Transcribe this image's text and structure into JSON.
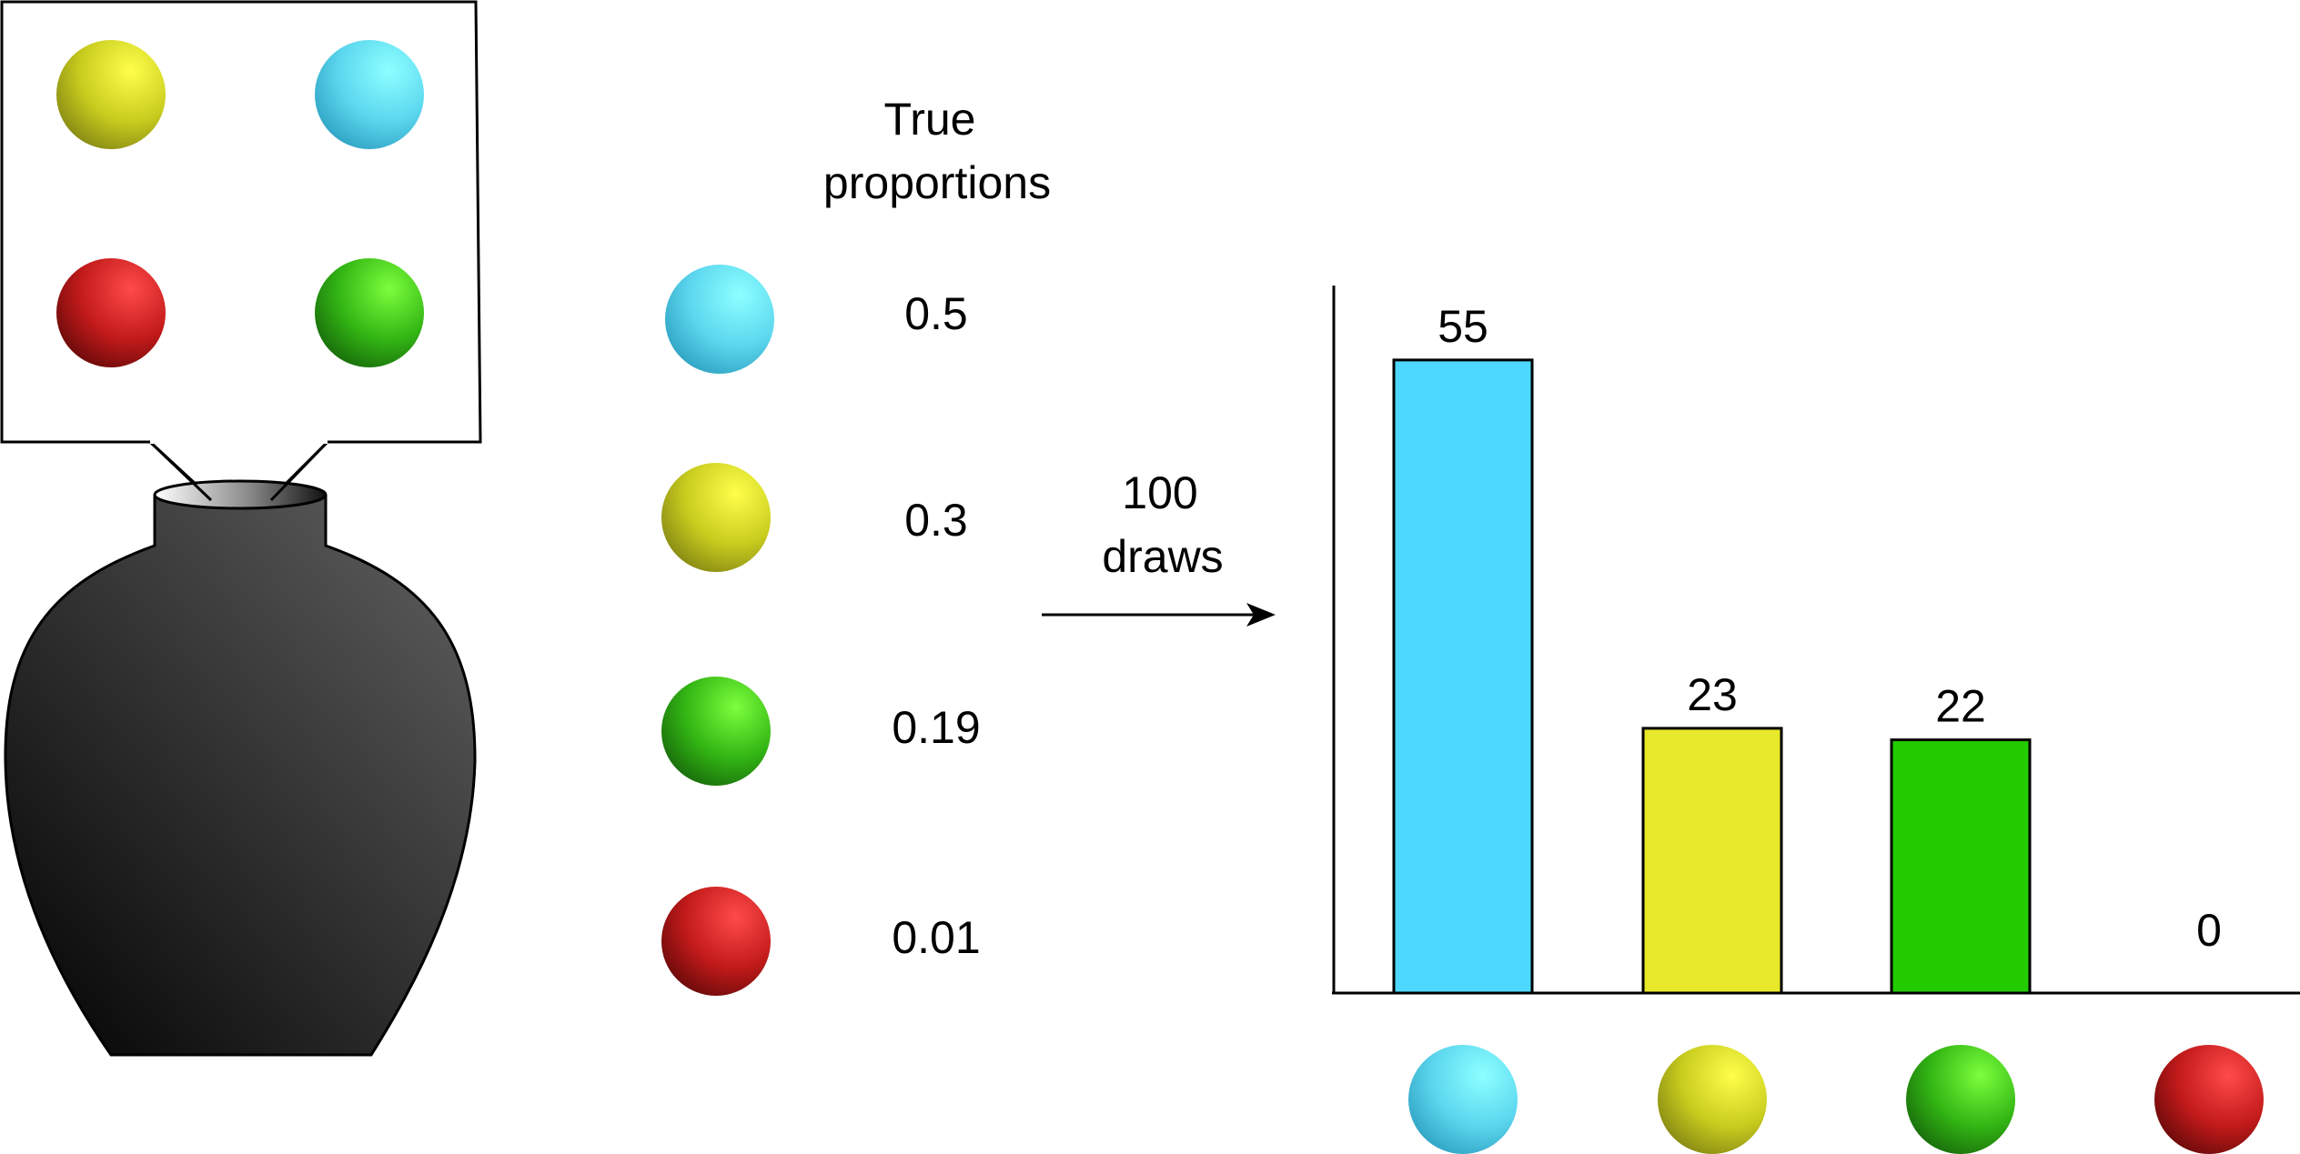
{
  "colors": {
    "cyan": "#4DD9FF",
    "yellow": "#E8E82A",
    "green": "#22CC00",
    "red": "#D81818",
    "urn": "#3A3A3A",
    "ink": "#000000"
  },
  "callout": {
    "balls": [
      "yellow",
      "cyan",
      "red",
      "green"
    ]
  },
  "proportions": {
    "header_line1": "True",
    "header_line2": "proportions",
    "items": [
      {
        "color": "cyan",
        "value": "0.5"
      },
      {
        "color": "yellow",
        "value": "0.3"
      },
      {
        "color": "green",
        "value": "0.19"
      },
      {
        "color": "red",
        "value": "0.01"
      }
    ]
  },
  "arrow": {
    "label_line1": "100",
    "label_line2": "draws"
  },
  "chart_data": {
    "type": "bar",
    "categories": [
      "cyan",
      "yellow",
      "green",
      "red"
    ],
    "values": [
      55,
      23,
      22,
      0
    ],
    "data_labels": [
      "55",
      "23",
      "22",
      "0"
    ],
    "ylim": [
      0,
      60
    ],
    "title": "",
    "xlabel": "",
    "ylabel": "",
    "grid": false
  }
}
